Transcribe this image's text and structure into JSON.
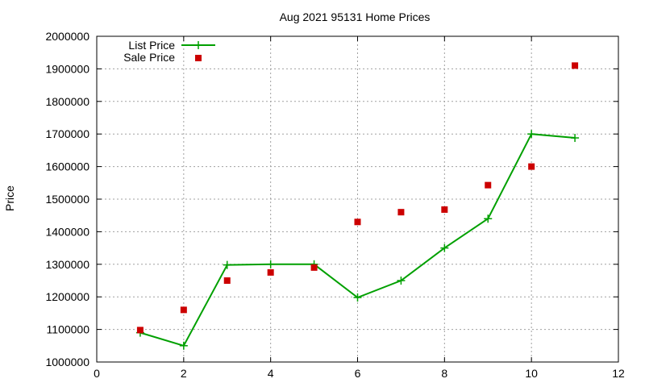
{
  "chart_data": {
    "type": "line",
    "title": "Aug 2021 95131 Home Prices",
    "xlabel": "",
    "ylabel": "Price",
    "xlim": [
      0,
      12
    ],
    "ylim": [
      1000000,
      2000000
    ],
    "xticks": [
      0,
      2,
      4,
      6,
      8,
      10,
      12
    ],
    "yticks": [
      1000000,
      1100000,
      1200000,
      1300000,
      1400000,
      1500000,
      1600000,
      1700000,
      1800000,
      1900000,
      2000000
    ],
    "grid": true,
    "legend_position": "top-left",
    "series": [
      {
        "name": "List Price",
        "style": "line-with-plus-markers",
        "color": "#00a000",
        "x": [
          1,
          2,
          3,
          4,
          5,
          6,
          7,
          8,
          9,
          10,
          11
        ],
        "y": [
          1090000,
          1050000,
          1298000,
          1300000,
          1300000,
          1198000,
          1250000,
          1350000,
          1440000,
          1700000,
          1688000
        ]
      },
      {
        "name": "Sale Price",
        "style": "square-markers",
        "color": "#cc0000",
        "x": [
          1,
          2,
          3,
          4,
          5,
          6,
          7,
          8,
          9,
          10,
          11
        ],
        "y": [
          1098000,
          1160000,
          1250000,
          1275000,
          1290000,
          1430000,
          1460000,
          1468000,
          1543000,
          1600000,
          1910000
        ]
      }
    ]
  }
}
